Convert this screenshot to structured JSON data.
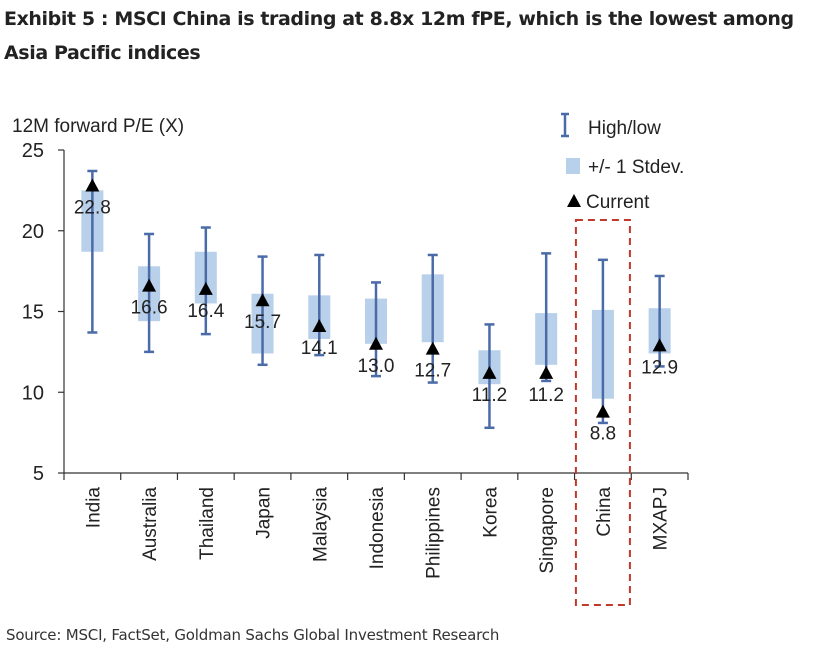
{
  "title": "Exhibit 5 : MSCI China is trading at 8.8x 12m fPE, which is the lowest among Asia Pacific indices",
  "source": "Source: MSCI, FactSet, Goldman Sachs Global Investment Research",
  "colors": {
    "range_line": "#4a6ba8",
    "stdev_box": "#b8d0ea",
    "marker": "#000000",
    "highlight": "#c0392b",
    "axis": "#333333"
  },
  "chart_data": {
    "type": "range-box",
    "title": "Exhibit 5 : MSCI China is trading at 8.8x 12m fPE, which is the lowest among Asia Pacific indices",
    "ylabel": "12M forward P/E (X)",
    "xlabel": "",
    "ylim": [
      5,
      25
    ],
    "yticks": [
      5,
      10,
      15,
      20,
      25
    ],
    "grid": false,
    "legend": {
      "position": "top-right",
      "entries": [
        "High/low",
        "+/- 1 Stdev.",
        "Current"
      ]
    },
    "categories": [
      "India",
      "Australia",
      "Thailand",
      "Japan",
      "Malaysia",
      "Indonesia",
      "Philippines",
      "Korea",
      "Singapore",
      "China",
      "MXAPJ"
    ],
    "series": [
      {
        "name": "High",
        "values": [
          23.7,
          19.8,
          20.2,
          18.4,
          18.5,
          16.8,
          18.5,
          14.2,
          18.6,
          18.2,
          17.2
        ]
      },
      {
        "name": "Low",
        "values": [
          13.7,
          12.5,
          13.6,
          11.7,
          12.3,
          11.0,
          10.6,
          7.8,
          10.7,
          8.1,
          11.6
        ]
      },
      {
        "name": "Stdev upper",
        "values": [
          22.5,
          17.8,
          18.7,
          16.1,
          16.0,
          15.8,
          17.3,
          12.6,
          14.9,
          15.1,
          15.2
        ]
      },
      {
        "name": "Stdev lower",
        "values": [
          18.7,
          14.4,
          15.5,
          12.4,
          13.3,
          13.0,
          13.1,
          10.5,
          11.7,
          9.6,
          12.4
        ]
      },
      {
        "name": "Current",
        "values": [
          22.8,
          16.6,
          16.4,
          15.7,
          14.1,
          13.0,
          12.7,
          11.2,
          11.2,
          8.8,
          12.9
        ]
      }
    ],
    "value_labels": [
      "22.8",
      "16.6",
      "16.4",
      "15.7",
      "14.1",
      "13.0",
      "12.7",
      "11.2",
      "11.2",
      "8.8",
      "12.9"
    ],
    "highlight": "China"
  }
}
